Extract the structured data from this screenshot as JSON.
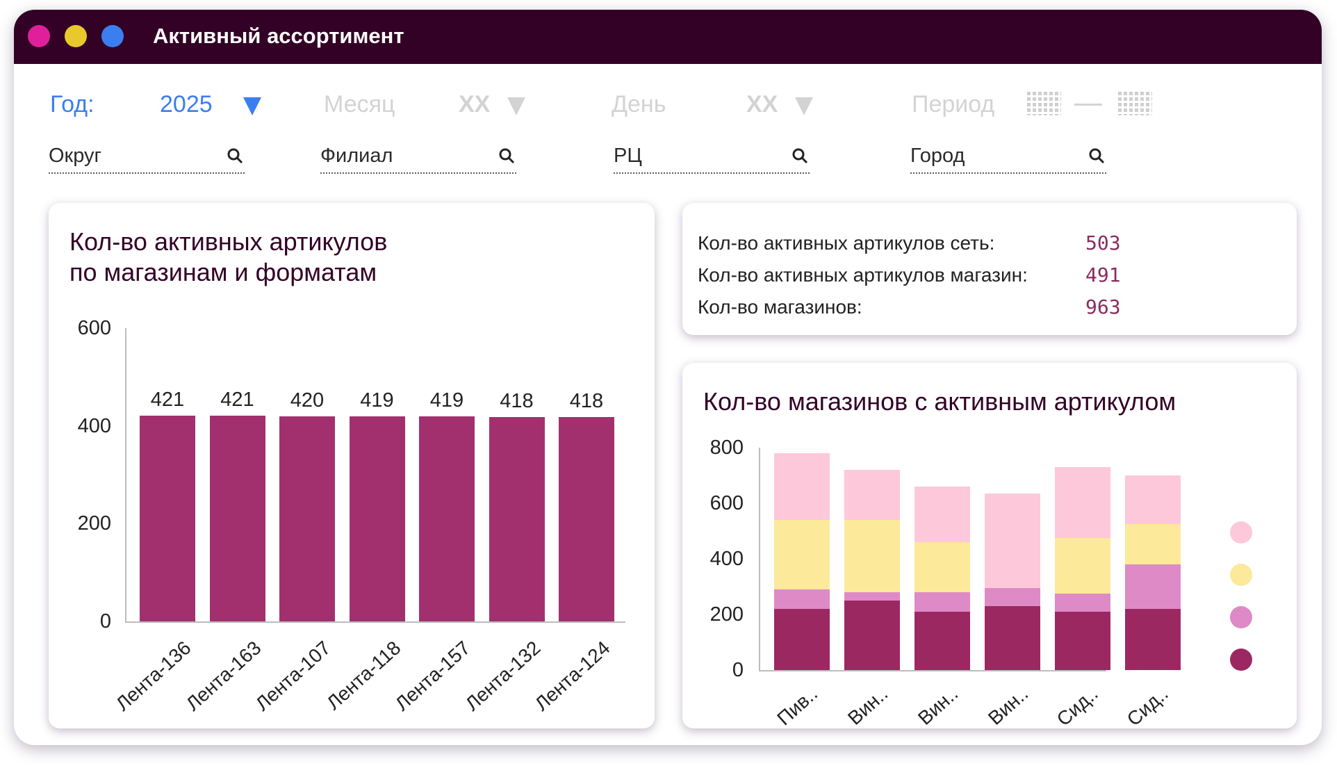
{
  "window": {
    "title": "Активный ассортимент",
    "dots": [
      "#e0209a",
      "#e8c92c",
      "#3b7ef0"
    ]
  },
  "filters": {
    "year_label": "Год:",
    "year_value": "2025",
    "month_label": "Месяц",
    "month_value": "XX",
    "day_label": "День",
    "day_value": "XX",
    "period_label": "Период",
    "accent_color": "#3b7ef0",
    "disabled_color": "#d3d3d3"
  },
  "search": [
    {
      "label": "Округ"
    },
    {
      "label": "Филиал"
    },
    {
      "label": "РЦ"
    },
    {
      "label": "Город"
    }
  ],
  "kpis": [
    {
      "label": "Кол-во активных артикулов сеть:",
      "value": "503"
    },
    {
      "label": "Кол-во активных артикулов магазин:",
      "value": "491"
    },
    {
      "label": "Кол-во магазинов:",
      "value": "963"
    }
  ],
  "chart_left": {
    "title_line1": "Кол-во активных артикулов",
    "title_line2": "по магазинам и форматам"
  },
  "chart_right": {
    "title": "Кол-во магазинов с активным артикулом"
  },
  "chart_data": [
    {
      "type": "bar",
      "title": "Кол-во активных артикулов по магазинам и форматам",
      "categories": [
        "Лента-136",
        "Лента-163",
        "Лента-107",
        "Лента-118",
        "Лента-157",
        "Лента-132",
        "Лента-124"
      ],
      "values": [
        421,
        421,
        420,
        419,
        419,
        418,
        418
      ],
      "data_labels": [
        "421",
        "421",
        "420",
        "419",
        "419",
        "418",
        "418"
      ],
      "yticks": [
        "600",
        "400",
        "200",
        "0"
      ],
      "ylim": [
        0,
        600
      ],
      "grid": false,
      "color": "#a3306e"
    },
    {
      "type": "bar",
      "stacked": true,
      "title": "Кол-во магазинов с активным артикулом",
      "categories": [
        "Пив..",
        "Вин..",
        "Вин..",
        "Вин..",
        "Сид..",
        "Сид.."
      ],
      "series": [
        {
          "color": "#9c2862",
          "values": [
            220,
            250,
            210,
            230,
            210,
            220
          ]
        },
        {
          "color": "#de8ac6",
          "values": [
            70,
            30,
            70,
            65,
            65,
            160
          ]
        },
        {
          "color": "#fce99a",
          "values": [
            250,
            260,
            180,
            0,
            200,
            145
          ]
        },
        {
          "color": "#fdc8da",
          "values": [
            240,
            180,
            200,
            340,
            255,
            175
          ]
        }
      ],
      "yticks": [
        "800",
        "600",
        "400",
        "200",
        "0"
      ],
      "ylim": [
        0,
        800
      ],
      "grid": false,
      "legend": "right"
    }
  ]
}
